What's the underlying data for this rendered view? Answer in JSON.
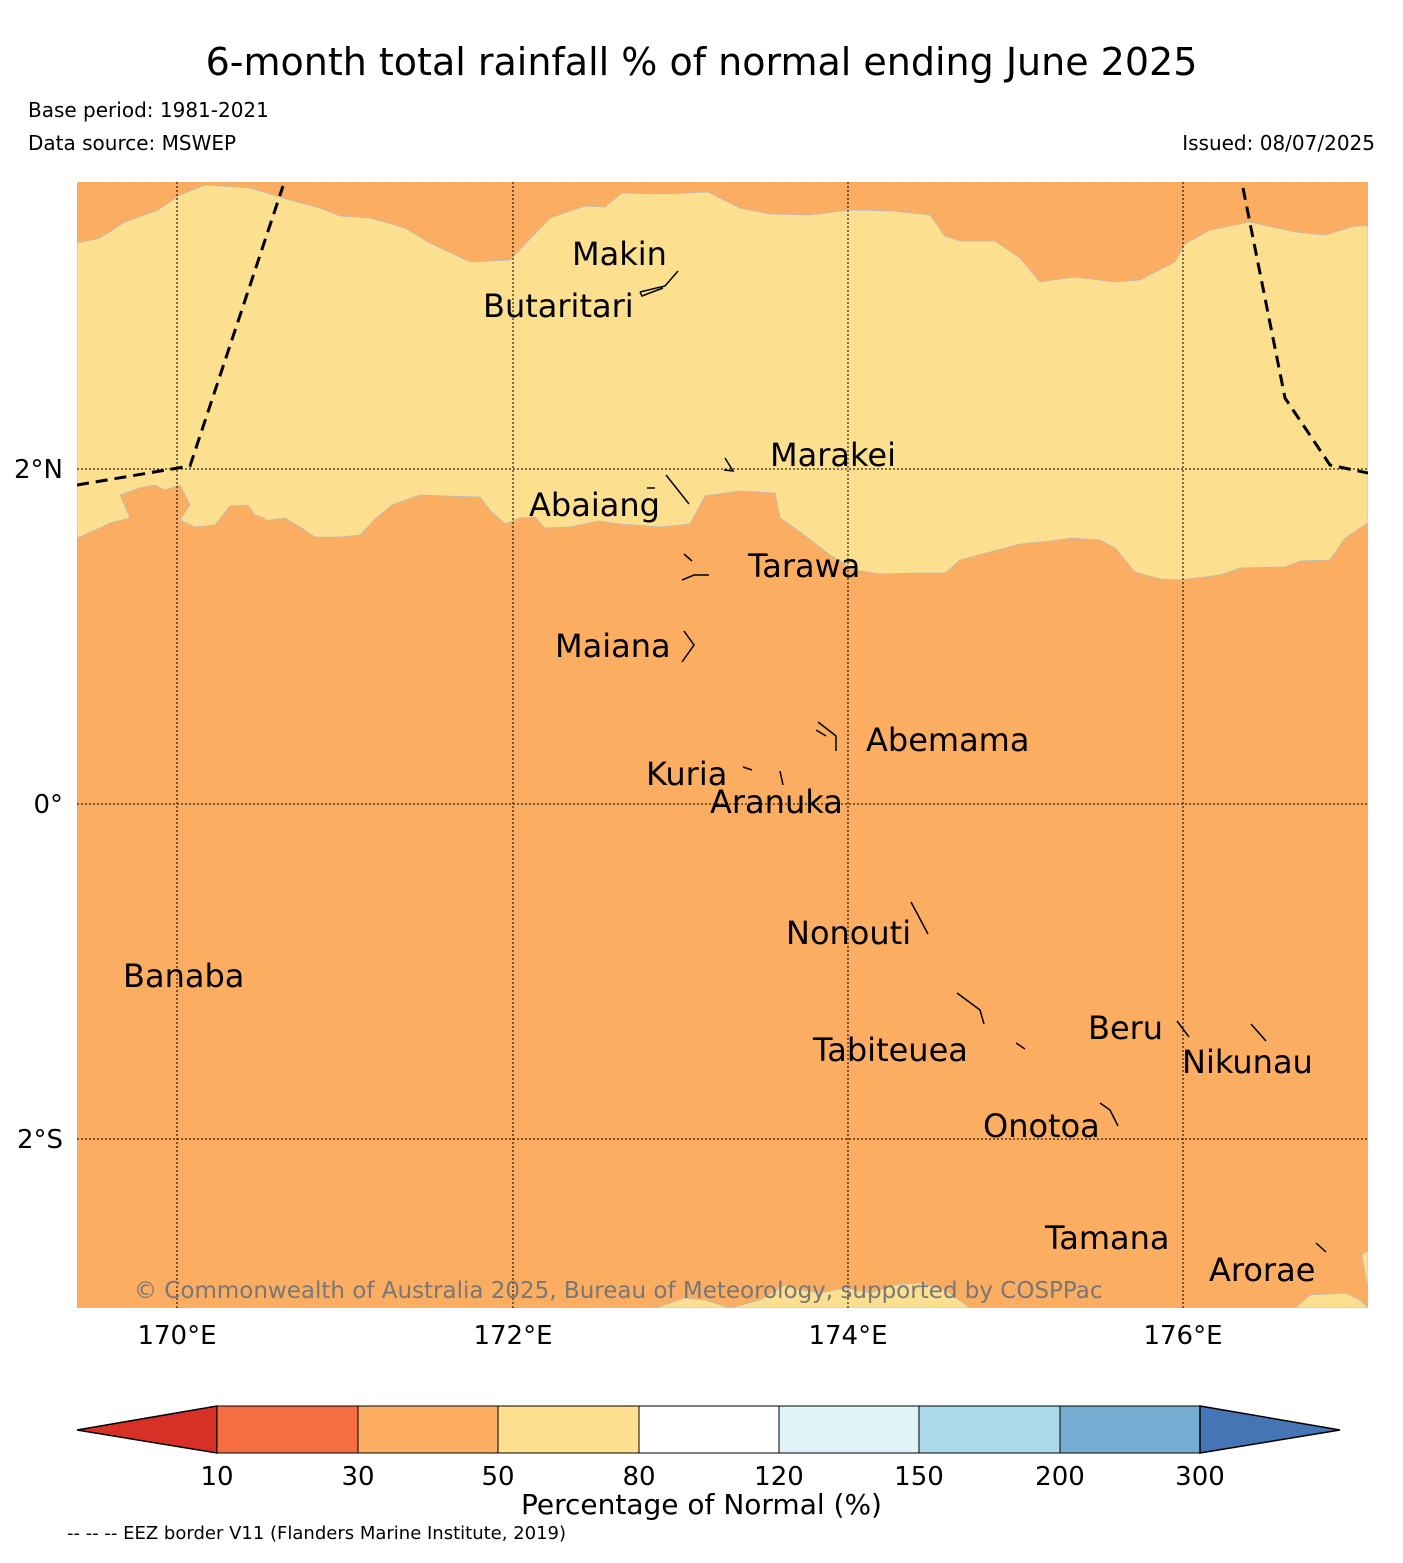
{
  "title": "6-month total rainfall % of normal ending June 2025",
  "base_period": "Base period: 1981-2021",
  "data_source": "Data source: MSWEP",
  "issued": "Issued: 08/07/2025",
  "copyright": "© Commonwealth of Australia 2025, Bureau of Meteorology, supported by COSPPac",
  "eez_note": "-- -- -- EEZ border V11 (Flanders Marine Institute, 2019)",
  "latitude_labels": [
    "2°N",
    "0°",
    "2°S"
  ],
  "longitude_labels": [
    "170°E",
    "172°E",
    "174°E",
    "176°E"
  ],
  "islands": [
    "Makin",
    "Butaritari",
    "Marakei",
    "Abaiang",
    "Tarawa",
    "Maiana",
    "Abemama",
    "Kuria",
    "Aranuka",
    "Nonouti",
    "Banaba",
    "Beru",
    "Tabiteuea",
    "Nikunau",
    "Onotoa",
    "Tamana",
    "Arorae"
  ],
  "colorbar": {
    "title": "Percentage of Normal (%)",
    "ticks": [
      "10",
      "30",
      "50",
      "80",
      "120",
      "150",
      "200",
      "300"
    ],
    "colors": [
      "#d73027",
      "#f46d43",
      "#fdae61",
      "#fee090",
      "#ffffff",
      "#e0f3f8",
      "#abd9e9",
      "#74add1",
      "#4575b4"
    ]
  },
  "map_colors": {
    "band_50_80": "#fce08f",
    "band_30_50": "#fbad62"
  }
}
